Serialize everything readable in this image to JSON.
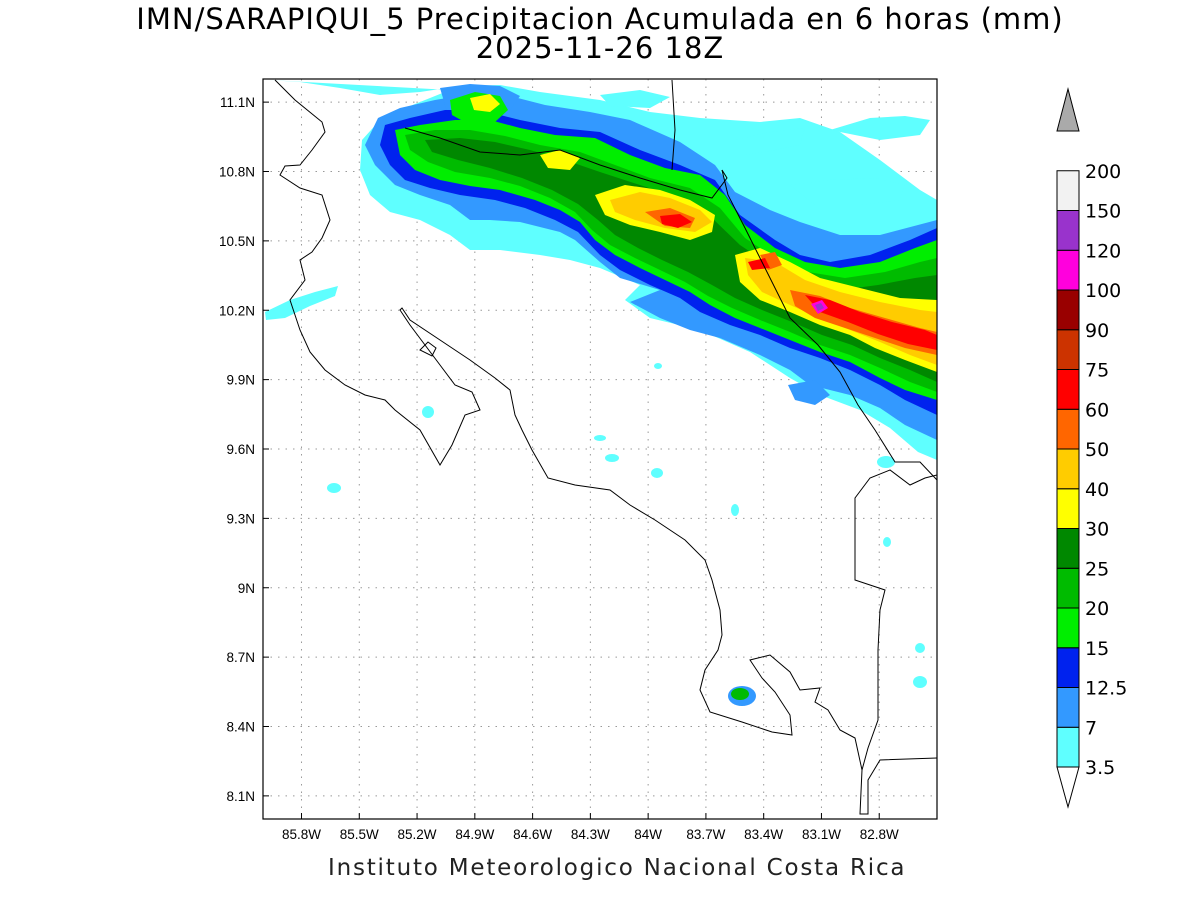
{
  "title": {
    "line1": "IMN/SARAPIQUI_5 Precipitacion Acumulada en 6 horas (mm)",
    "line2": "2025-11-26 18Z"
  },
  "footer": "Instituto Meteorologico Nacional Costa Rica",
  "map": {
    "lon_range": [
      -86.0,
      -82.5
    ],
    "lat_range": [
      8.0,
      11.2
    ],
    "lon_ticks": [
      "85.8W",
      "85.5W",
      "85.2W",
      "84.9W",
      "84.6W",
      "84.3W",
      "84W",
      "83.7W",
      "83.4W",
      "83.1W",
      "82.8W"
    ],
    "lat_ticks": [
      "11.1N",
      "10.8N",
      "10.5N",
      "10.2N",
      "9.9N",
      "9.6N",
      "9.3N",
      "9N",
      "8.7N",
      "8.4N",
      "8.1N"
    ],
    "grid": "dotted",
    "region": "Costa Rica"
  },
  "colorbar": {
    "labels": [
      "3.5",
      "7",
      "12.5",
      "15",
      "20",
      "25",
      "30",
      "40",
      "50",
      "60",
      "75",
      "90",
      "100",
      "120",
      "150",
      "200"
    ],
    "colors": [
      "#5fffff",
      "#3399ff",
      "#0022ee",
      "#00ee00",
      "#00bb00",
      "#008800",
      "#ffff00",
      "#ffcc00",
      "#ff6600",
      "#ff0000",
      "#cc3300",
      "#990000",
      "#ff00dd",
      "#9933cc",
      "#f2f2f2",
      "#aaaaaa"
    ]
  }
}
